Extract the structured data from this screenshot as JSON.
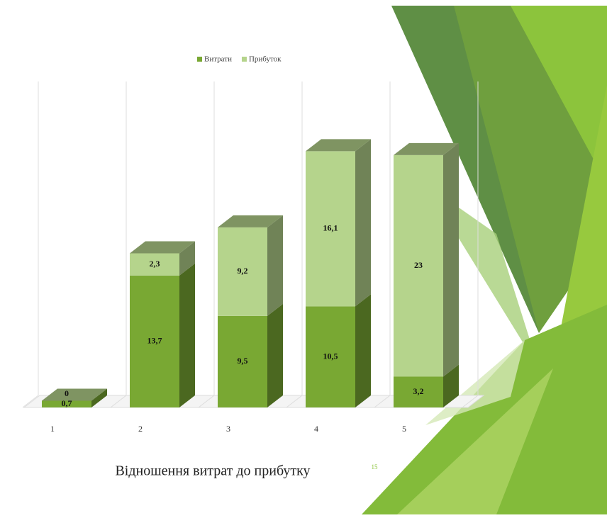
{
  "chart_data": {
    "type": "bar3d_stacked",
    "title": "Відношення витрат до прибутку",
    "page_number": "15",
    "categories": [
      "1",
      "2",
      "3",
      "4",
      "5"
    ],
    "series": [
      {
        "name": "Витрати",
        "color": "#79a833",
        "values": [
          0.7,
          13.7,
          9.5,
          10.5,
          3.2
        ],
        "value_labels": [
          "0,7",
          "13,7",
          "9,5",
          "10,5",
          "3,2"
        ]
      },
      {
        "name": "Прибуток",
        "color": "#b5d48c",
        "values": [
          0,
          2.3,
          9.2,
          16.1,
          23
        ],
        "value_labels": [
          "0",
          "2,3",
          "9,2",
          "16,1",
          "23"
        ]
      }
    ],
    "ylim": [
      0,
      27
    ],
    "legend": "top"
  }
}
